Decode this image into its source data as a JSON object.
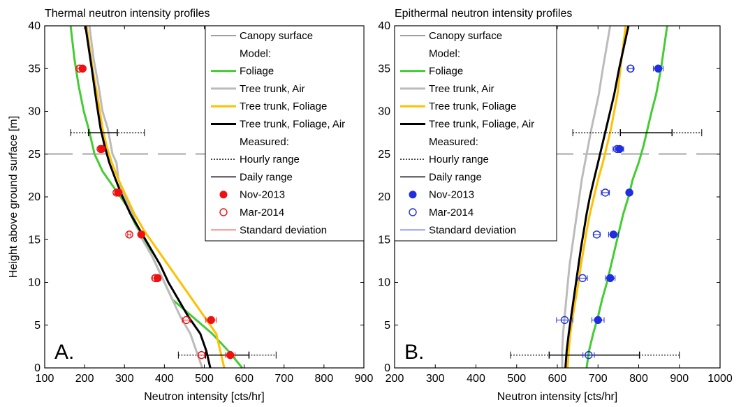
{
  "chart_data": [
    {
      "type": "line",
      "title": "Thermal neutron intensity profiles",
      "xlabel": "Neutron intensity [cts/hr]",
      "ylabel": "Height above ground surface [m]",
      "xlim": [
        100,
        900
      ],
      "ylim": [
        0,
        40
      ],
      "xticks": [
        100,
        200,
        300,
        400,
        500,
        600,
        700,
        800,
        900
      ],
      "yticks": [
        0,
        5,
        10,
        15,
        20,
        25,
        30,
        35,
        40
      ],
      "panel_letter": "A.",
      "canopy_surface_y": 25,
      "legend_position": "top-right",
      "legend": [
        {
          "label": "Canopy surface",
          "kind": "dash",
          "color": "#000000"
        },
        {
          "label": "Model:",
          "kind": "header"
        },
        {
          "label": "Foliage",
          "kind": "line",
          "color": "#44cc33"
        },
        {
          "label": "Tree trunk, Air",
          "kind": "line",
          "color": "#bbbbbb"
        },
        {
          "label": "Tree trunk, Foliage",
          "kind": "line",
          "color": "#ffc000"
        },
        {
          "label": "Tree trunk, Foliage, Air",
          "kind": "line",
          "color": "#000000"
        },
        {
          "label": "Measured:",
          "kind": "header"
        },
        {
          "label": "Hourly range",
          "kind": "dotted",
          "color": "#000000"
        },
        {
          "label": "Daily range",
          "kind": "solid-thin",
          "color": "#000000"
        },
        {
          "label": "Nov-2013",
          "kind": "filled",
          "color": "#ee1111"
        },
        {
          "label": "Mar-2014",
          "kind": "open",
          "color": "#ee1111"
        },
        {
          "label": "Standard deviation",
          "kind": "thin",
          "color": "#ee1111"
        }
      ],
      "series": [
        {
          "name": "Foliage",
          "color": "#44cc33",
          "x": [
            595,
            560,
            520,
            470,
            420,
            400,
            380,
            360,
            325,
            305,
            275,
            245,
            225,
            210,
            198,
            185,
            175,
            165
          ],
          "y": [
            0,
            2,
            4,
            6,
            8,
            10,
            12,
            14,
            17,
            19,
            21,
            23,
            25,
            28,
            30,
            33,
            36,
            40
          ]
        },
        {
          "name": "Tree trunk, Air",
          "color": "#bbbbbb",
          "x": [
            495,
            480,
            465,
            440,
            420,
            400,
            370,
            345,
            320,
            300,
            285,
            280,
            270,
            258,
            245,
            235,
            223,
            212
          ],
          "y": [
            0,
            2,
            4,
            6,
            8,
            10,
            13,
            15,
            18,
            20,
            22,
            24,
            25,
            28,
            30,
            33,
            36,
            40
          ]
        },
        {
          "name": "Tree trunk, Foliage",
          "color": "#ffc000",
          "x": [
            550,
            540,
            530,
            500,
            470,
            440,
            410,
            380,
            350,
            325,
            305,
            285,
            268,
            255,
            245,
            235,
            220,
            205
          ],
          "y": [
            0,
            2,
            4,
            6,
            8,
            10,
            12,
            14,
            16,
            18,
            20,
            22,
            24,
            26,
            28,
            31,
            35,
            40
          ]
        },
        {
          "name": "Tree trunk, Foliage, Air",
          "color": "#000000",
          "x": [
            515,
            505,
            490,
            460,
            435,
            410,
            390,
            365,
            340,
            315,
            295,
            278,
            262,
            250,
            240,
            230,
            218,
            202
          ],
          "y": [
            0,
            2,
            4,
            6,
            8,
            10,
            12,
            14,
            16,
            18,
            20,
            22,
            24,
            26,
            28,
            31,
            35,
            40
          ]
        }
      ],
      "measured": {
        "color": "#ee1111",
        "nov_2013": [
          {
            "x": 565,
            "y": 1.5,
            "sd": 12
          },
          {
            "x": 517,
            "y": 5.6,
            "sd": 13
          },
          {
            "x": 383,
            "y": 10.5,
            "sd": 8
          },
          {
            "x": 342,
            "y": 15.6,
            "sd": 6
          },
          {
            "x": 285,
            "y": 20.5,
            "sd": 5
          },
          {
            "x": 243,
            "y": 25.6,
            "sd": 5
          },
          {
            "x": 195,
            "y": 35.0,
            "sd": 5
          }
        ],
        "mar_2014": [
          {
            "x": 493,
            "y": 1.5,
            "sd": 8
          },
          {
            "x": 455,
            "y": 5.6,
            "sd": 10
          },
          {
            "x": 377,
            "y": 10.5,
            "sd": 7
          },
          {
            "x": 312,
            "y": 15.6,
            "sd": 4
          },
          {
            "x": 280,
            "y": 20.5,
            "sd": 5
          },
          {
            "x": 240,
            "y": 25.6,
            "sd": 4
          },
          {
            "x": 187,
            "y": 35.0,
            "sd": 5
          }
        ],
        "hourly_range": [
          {
            "y": 27.5,
            "min": 165,
            "max": 350
          },
          {
            "y": 1.5,
            "min": 435,
            "max": 680
          }
        ],
        "daily_range": [
          {
            "y": 27.5,
            "min": 210,
            "max": 282
          },
          {
            "y": 1.5,
            "min": 503,
            "max": 612
          }
        ]
      }
    },
    {
      "type": "line",
      "title": "Epithermal neutron intensity profiles",
      "xlabel": "Neutron intensity [cts/hr]",
      "ylabel": "",
      "xlim": [
        200,
        1000
      ],
      "ylim": [
        0,
        40
      ],
      "xticks": [
        200,
        300,
        400,
        500,
        600,
        700,
        800,
        900,
        1000
      ],
      "yticks": [
        0,
        5,
        10,
        15,
        20,
        25,
        30,
        35,
        40
      ],
      "panel_letter": "B.",
      "canopy_surface_y": 25,
      "legend_position": "top-left",
      "legend": [
        {
          "label": "Canopy surface",
          "kind": "dash",
          "color": "#000000"
        },
        {
          "label": "Model:",
          "kind": "header"
        },
        {
          "label": "Foliage",
          "kind": "line",
          "color": "#44cc33"
        },
        {
          "label": "Tree trunk, Air",
          "kind": "line",
          "color": "#bbbbbb"
        },
        {
          "label": "Tree trunk, Foliage",
          "kind": "line",
          "color": "#ffc000"
        },
        {
          "label": "Tree trunk, Foliage, Air",
          "kind": "line",
          "color": "#000000"
        },
        {
          "label": "Measured:",
          "kind": "header"
        },
        {
          "label": "Hourly range",
          "kind": "dotted",
          "color": "#000000"
        },
        {
          "label": "Daily range",
          "kind": "solid-thin",
          "color": "#000000"
        },
        {
          "label": "Nov-2013",
          "kind": "filled",
          "color": "#1f2ee0"
        },
        {
          "label": "Mar-2014",
          "kind": "open",
          "color": "#1f2ee0"
        },
        {
          "label": "Standard deviation",
          "kind": "thin",
          "color": "#1f2ee0"
        }
      ],
      "series": [
        {
          "name": "Foliage",
          "color": "#44cc33",
          "x": [
            672,
            678,
            688,
            700,
            710,
            722,
            732,
            742,
            752,
            762,
            775,
            785,
            800,
            812,
            822,
            832,
            843,
            855,
            870
          ],
          "y": [
            0,
            2,
            4,
            6,
            8,
            10,
            12,
            14,
            16,
            18,
            20,
            22,
            24,
            26,
            28,
            30,
            32,
            35,
            40
          ]
        },
        {
          "name": "Tree trunk, Air",
          "color": "#bbbbbb",
          "x": [
            612,
            612,
            614,
            618,
            622,
            626,
            630,
            636,
            642,
            648,
            654,
            660,
            668,
            676,
            684,
            693,
            702,
            712,
            730
          ],
          "y": [
            0,
            2,
            4,
            6,
            8,
            10,
            12,
            14,
            16,
            18,
            20,
            22,
            24,
            26,
            28,
            30,
            32,
            35,
            40
          ]
        },
        {
          "name": "Tree trunk, Foliage",
          "color": "#ffc000",
          "x": [
            625,
            628,
            632,
            638,
            645,
            652,
            658,
            665,
            672,
            680,
            690,
            700,
            712,
            722,
            732,
            740,
            748,
            755,
            768
          ],
          "y": [
            0,
            2,
            4,
            6,
            8,
            10,
            12,
            14,
            16,
            18,
            20,
            22,
            24,
            26,
            28,
            30,
            32,
            35,
            40
          ]
        },
        {
          "name": "Tree trunk, Foliage, Air",
          "color": "#000000",
          "x": [
            620,
            623,
            628,
            634,
            640,
            646,
            652,
            658,
            665,
            672,
            680,
            690,
            700,
            710,
            720,
            730,
            740,
            752,
            775
          ],
          "y": [
            0,
            2,
            4,
            6,
            8,
            10,
            12,
            14,
            16,
            18,
            20,
            22,
            24,
            26,
            28,
            30,
            32,
            35,
            40
          ]
        }
      ],
      "measured": {
        "color": "#1f2ee0",
        "nov_2013": [
          {
            "x": 700,
            "y": 5.6,
            "sd": 15
          },
          {
            "x": 730,
            "y": 10.5,
            "sd": 12
          },
          {
            "x": 738,
            "y": 15.6,
            "sd": 12
          },
          {
            "x": 777,
            "y": 20.5,
            "sd": 6
          },
          {
            "x": 753,
            "y": 25.6,
            "sd": 10
          },
          {
            "x": 848,
            "y": 35.0,
            "sd": 12
          }
        ],
        "mar_2014": [
          {
            "x": 677,
            "y": 1.5,
            "sd": 14
          },
          {
            "x": 618,
            "y": 5.6,
            "sd": 20
          },
          {
            "x": 662,
            "y": 10.5,
            "sd": 12
          },
          {
            "x": 697,
            "y": 15.6,
            "sd": 8
          },
          {
            "x": 718,
            "y": 20.5,
            "sd": 10
          },
          {
            "x": 747,
            "y": 25.6,
            "sd": 10
          },
          {
            "x": 780,
            "y": 35.0,
            "sd": 6
          }
        ],
        "hourly_range": [
          {
            "y": 27.5,
            "min": 638,
            "max": 955
          },
          {
            "y": 1.5,
            "min": 485,
            "max": 900
          }
        ],
        "daily_range": [
          {
            "y": 27.5,
            "min": 755,
            "max": 882
          },
          {
            "y": 1.5,
            "min": 580,
            "max": 802
          }
        ]
      }
    }
  ]
}
